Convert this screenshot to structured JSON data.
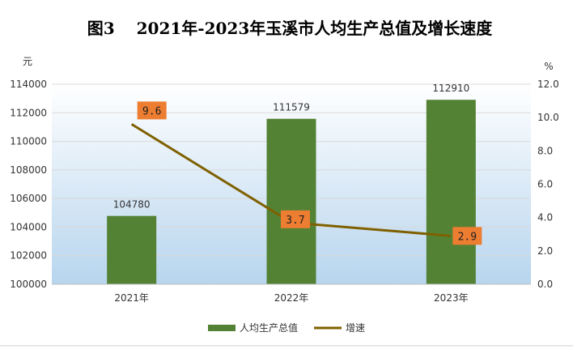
{
  "chart_data": {
    "type": "bar+line",
    "title": "图3　 2021年-2023年玉溪市人均生产总值及增长速度",
    "categories": [
      "2021年",
      "2022年",
      "2023年"
    ],
    "y_left": {
      "unit": "元",
      "ylim": [
        100000,
        114000
      ],
      "ticks": [
        "100000",
        "102000",
        "104000",
        "106000",
        "108000",
        "110000",
        "112000",
        "114000"
      ]
    },
    "y_right": {
      "unit": "%",
      "ylim": [
        0,
        12
      ],
      "ticks": [
        "0.0",
        "2.0",
        "4.0",
        "6.0",
        "8.0",
        "10.0",
        "12.0"
      ]
    },
    "series": [
      {
        "name": "人均生产总值",
        "type": "bar",
        "axis": "left",
        "values": [
          104780,
          111579,
          112910
        ],
        "labels": [
          "104780",
          "111579",
          "112910"
        ],
        "color": "#548235"
      },
      {
        "name": "增速",
        "type": "line",
        "axis": "right",
        "values": [
          9.6,
          3.7,
          2.9
        ],
        "labels": [
          "9.6",
          "3.7",
          "2.9"
        ],
        "color": "#7F6000",
        "label_bg": "#ED7D31"
      }
    ],
    "grid": true,
    "legend": "bottom"
  }
}
